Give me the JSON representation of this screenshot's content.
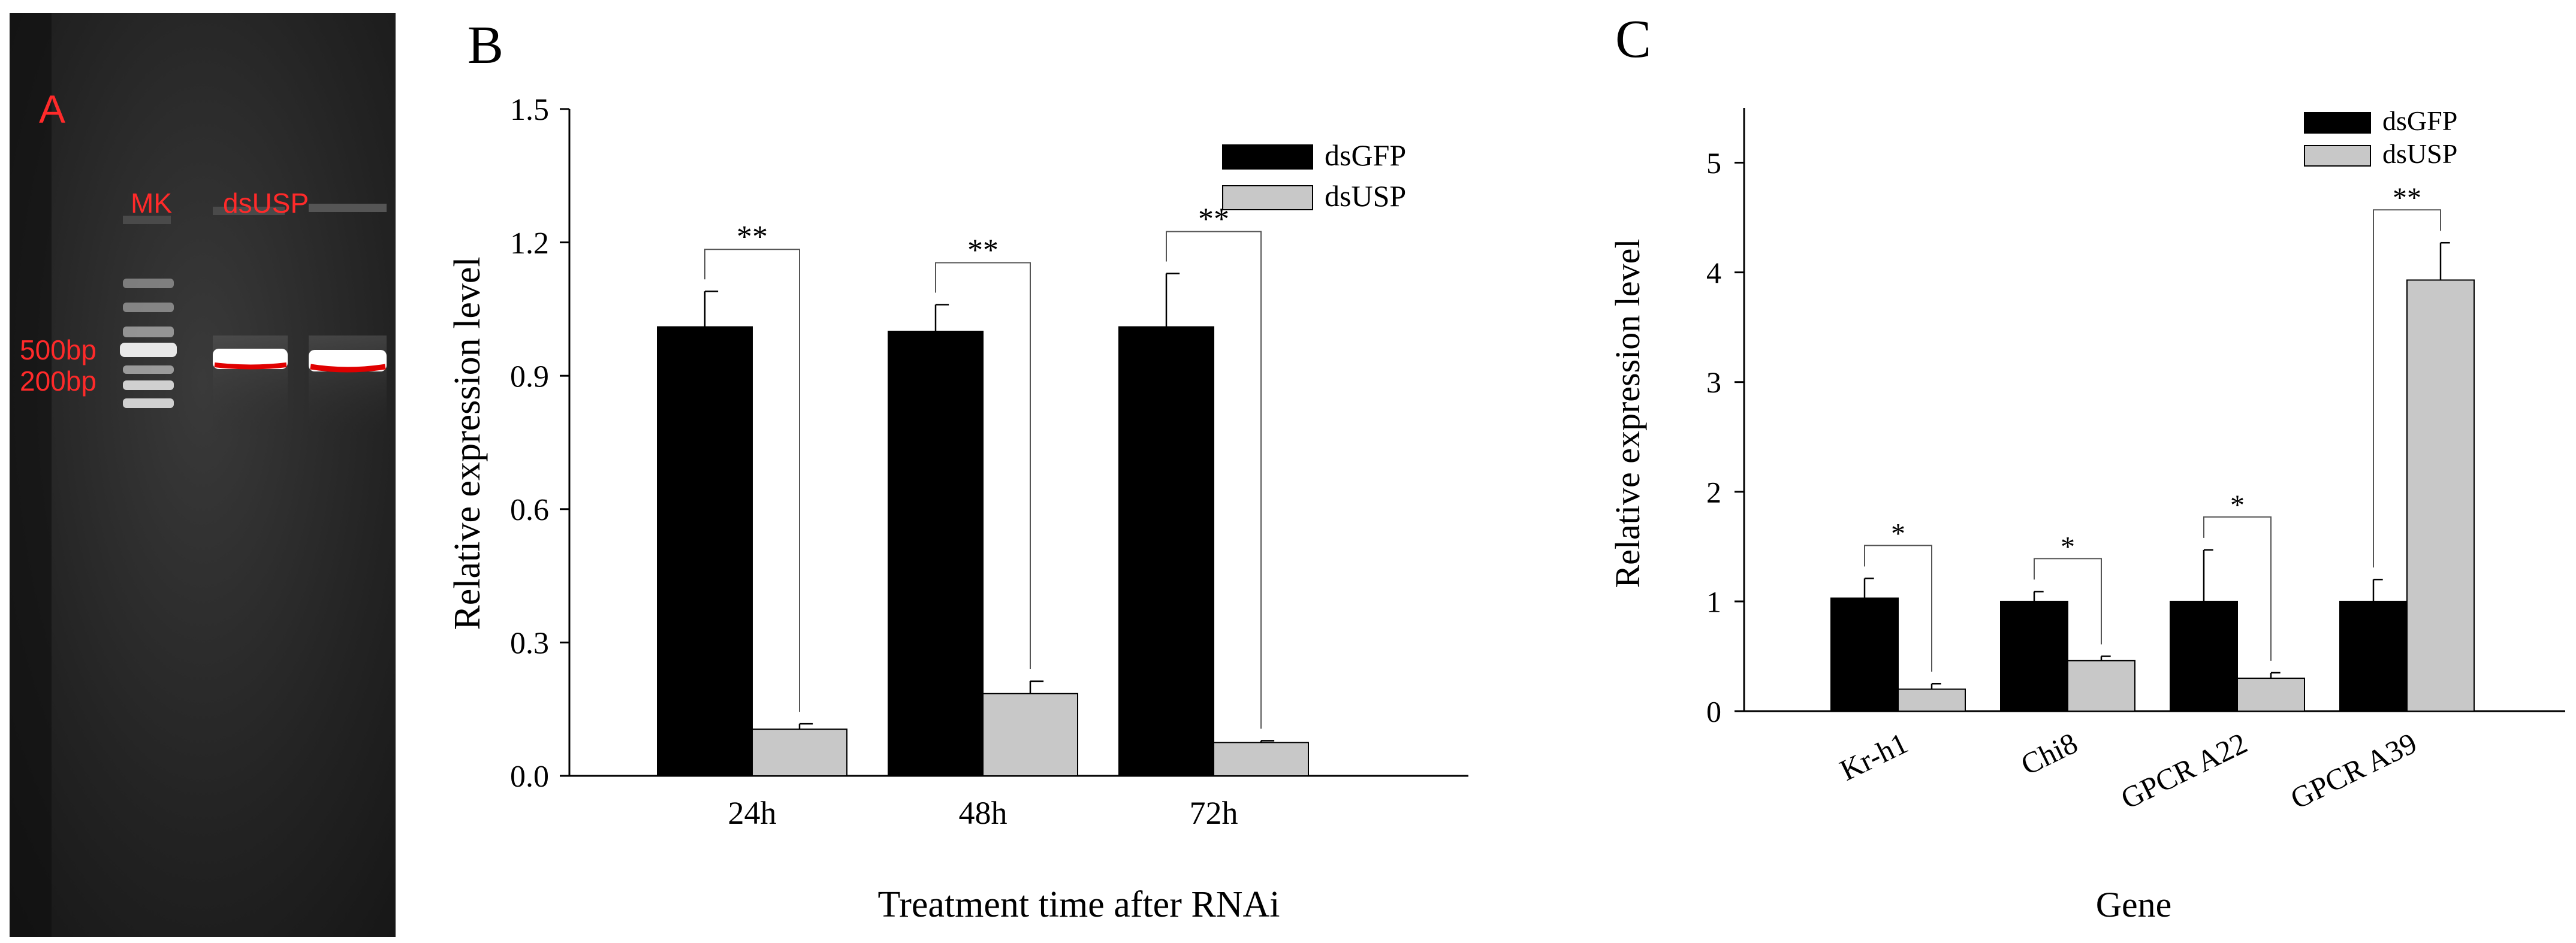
{
  "panelA": {
    "label": "A",
    "lane_labels": [
      "MK",
      "dsUSP"
    ],
    "size_labels": [
      "500bp",
      "200bp"
    ],
    "colors": {
      "gel": "#1b1b1b",
      "text": "#ff2a2a",
      "band": "#ffffff"
    }
  },
  "chart_data": [
    {
      "panel": "B",
      "type": "bar",
      "categories": [
        "24h",
        "48h",
        "72h"
      ],
      "series": [
        {
          "name": "dsGFP",
          "values": [
            1.01,
            1.0,
            1.01
          ],
          "errors": [
            0.08,
            0.06,
            0.12
          ],
          "color": "#000000"
        },
        {
          "name": "dsUSP",
          "values": [
            0.105,
            0.185,
            0.075
          ],
          "errors": [
            0.012,
            0.028,
            0.004
          ],
          "color": "#c8c8c8"
        }
      ],
      "significance": [
        "**",
        "**",
        "**"
      ],
      "title": "",
      "xlabel": "Treatment time after RNAi",
      "ylabel": "Relative expression level",
      "ylim": [
        0,
        1.5
      ],
      "yticks": [
        0,
        0.3,
        0.6,
        0.9,
        1.2,
        1.5
      ],
      "ytick_labels": [
        "0.0",
        "0.3",
        "0.6",
        "0.9",
        "1.2",
        "1.5"
      ],
      "legend": "top-right"
    },
    {
      "panel": "C",
      "type": "bar",
      "categories": [
        "Kr-h1",
        "Chi8",
        "GPCR A22",
        "GPCR A39"
      ],
      "series": [
        {
          "name": "dsGFP",
          "values": [
            1.03,
            1.0,
            1.0,
            1.0
          ],
          "errors": [
            0.18,
            0.09,
            0.47,
            0.2
          ],
          "color": "#000000"
        },
        {
          "name": "dsUSP",
          "values": [
            0.2,
            0.46,
            0.3,
            3.93
          ],
          "errors": [
            0.05,
            0.04,
            0.05,
            0.34
          ],
          "color": "#c8c8c8"
        }
      ],
      "significance": [
        "*",
        "*",
        "*",
        "**"
      ],
      "title": "",
      "xlabel": "Gene",
      "ylabel": "Relative expression level",
      "ylim": [
        0,
        5.5
      ],
      "yticks": [
        0,
        1,
        2,
        3,
        4,
        5
      ],
      "ytick_labels": [
        "0",
        "1",
        "2",
        "3",
        "4",
        "5"
      ],
      "legend": "top-right"
    }
  ]
}
